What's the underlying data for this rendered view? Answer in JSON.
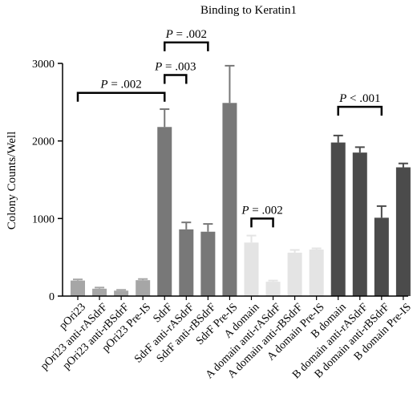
{
  "chart_data": {
    "type": "bar",
    "title": "Binding to Keratin1",
    "xlabel": "",
    "ylabel": "Colony Counts/Well",
    "ylim": [
      0,
      3000
    ],
    "yticks": [
      0,
      1000,
      2000,
      3000
    ],
    "grid": false,
    "categories": [
      "pOri23",
      "pOri23 anti-rASdrF",
      "pOri23 anti-rBSdrF",
      "pOri23 Pre-IS",
      "SdrF",
      "SdrF anti-rASdrF",
      "SdrF anti-rBSdrF",
      "SdrF Pre-IS",
      "A domain",
      "A domain anti-rASdrF",
      "A domain anti-rBSdrF",
      "A domain Pre-IS",
      "B domain",
      "B domain anti-rASdrF",
      "B domain anti-rBSdrF",
      "B domain Pre-IS"
    ],
    "values": [
      200,
      95,
      70,
      205,
      2180,
      860,
      830,
      2490,
      690,
      185,
      560,
      600,
      1980,
      1850,
      1010,
      1660
    ],
    "errors": [
      15,
      15,
      10,
      15,
      230,
      90,
      100,
      480,
      90,
      15,
      35,
      15,
      90,
      70,
      150,
      50
    ],
    "colors": [
      "#a6a6a6",
      "#a6a6a6",
      "#a6a6a6",
      "#a6a6a6",
      "#787878",
      "#787878",
      "#787878",
      "#787878",
      "#e4e4e4",
      "#e4e4e4",
      "#e4e4e4",
      "#e4e4e4",
      "#4b4b4b",
      "#4b4b4b",
      "#4b4b4b",
      "#4b4b4b"
    ],
    "annotations": [
      {
        "label_p": "P",
        "label_rest": " = .002",
        "from": 0,
        "to": 4,
        "y": 2620
      },
      {
        "label_p": "P",
        "label_rest": " = .003",
        "from": 4,
        "to": 5,
        "y": 2850
      },
      {
        "label_p": "P",
        "label_rest": " = .002",
        "from": 4,
        "to": 6,
        "y": 3270
      },
      {
        "label_p": "P",
        "label_rest": " = .002",
        "from": 8,
        "to": 9,
        "y": 1000
      },
      {
        "label_p": "P",
        "label_rest": " < .001",
        "from": 12,
        "to": 14,
        "y": 2440
      }
    ]
  }
}
